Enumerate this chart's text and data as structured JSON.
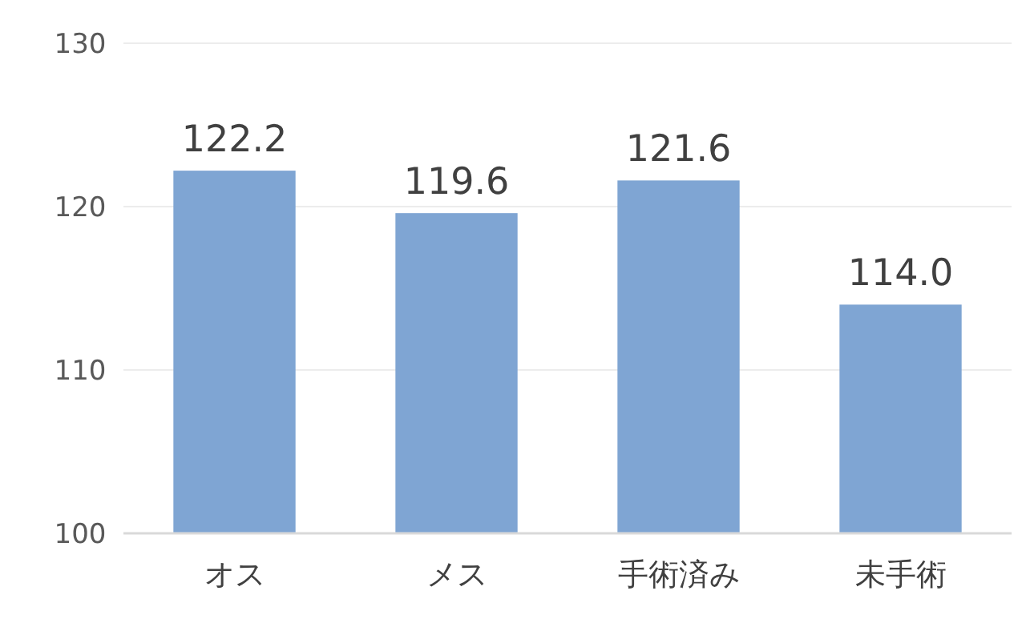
{
  "chart_data": {
    "type": "bar",
    "categories": [
      "オス",
      "メス",
      "手術済み",
      "未手術"
    ],
    "values": [
      122.2,
      119.6,
      121.6,
      114.0
    ],
    "value_labels": [
      "122.2",
      "119.6",
      "121.6",
      "114.0"
    ],
    "color": "#7fa5d3",
    "ylim": [
      100,
      130
    ],
    "yticks": [
      100,
      110,
      120,
      130
    ],
    "grid": "y"
  }
}
